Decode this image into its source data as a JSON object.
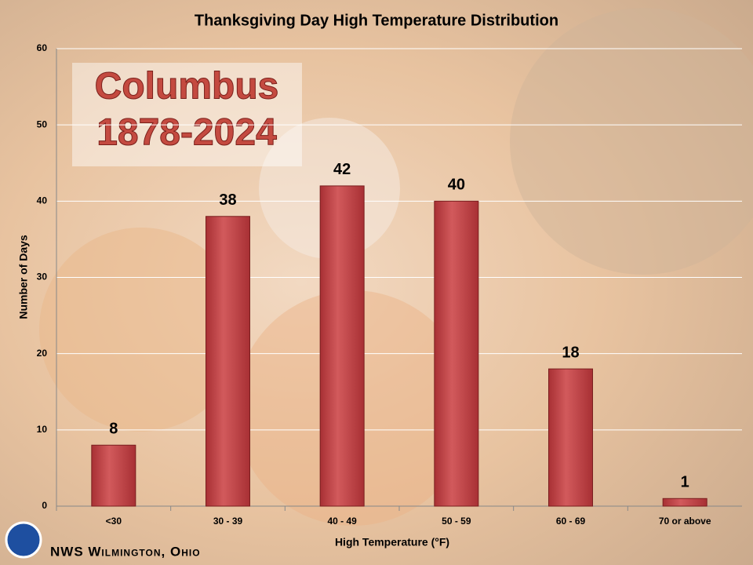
{
  "chart_data": {
    "type": "bar",
    "title": "Thanksgiving Day High Temperature Distribution",
    "annotation": [
      "Columbus",
      "1878-2024"
    ],
    "footer": "NWS Wilmington, Ohio",
    "x_label": "High Temperature (°F)",
    "y_label": "Number of Days",
    "categories": [
      "<30",
      "30 - 39",
      "40 - 49",
      "50 - 59",
      "60 - 69",
      "70 or above"
    ],
    "values": [
      8,
      38,
      42,
      40,
      18,
      1
    ],
    "color": "#c8474a",
    "ylim": [
      0,
      60
    ],
    "yticks": [
      0,
      10,
      20,
      30,
      40,
      50,
      60
    ],
    "grid": true
  }
}
